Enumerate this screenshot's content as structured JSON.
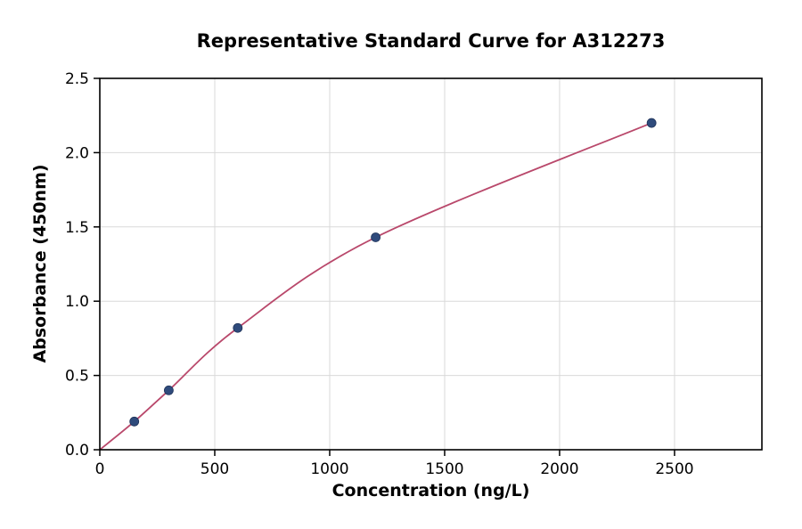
{
  "chart_data": {
    "type": "line",
    "title": "Representative Standard Curve for A312273",
    "xlabel": "Concentration (ng/L)",
    "ylabel": "Absorbance (450nm)",
    "xlim": [
      0,
      2880
    ],
    "ylim": [
      0,
      2.5
    ],
    "x_ticks": [
      0,
      500,
      1000,
      1500,
      2000,
      2500
    ],
    "y_ticks": [
      0,
      0.5,
      1,
      1.5,
      2,
      2.5
    ],
    "grid": true,
    "legend": "none",
    "curve_start": {
      "x": 0,
      "y": 0
    },
    "points": [
      {
        "x": 150,
        "y": 0.19
      },
      {
        "x": 300,
        "y": 0.4
      },
      {
        "x": 600,
        "y": 0.82
      },
      {
        "x": 1200,
        "y": 1.43
      },
      {
        "x": 2400,
        "y": 2.2
      }
    ],
    "colors": {
      "line": "#b9486b",
      "marker": "#2f4b7c",
      "marker_edge": "#20345a",
      "grid": "#d9d9d9",
      "axis": "#000000",
      "background": "#ffffff"
    }
  }
}
